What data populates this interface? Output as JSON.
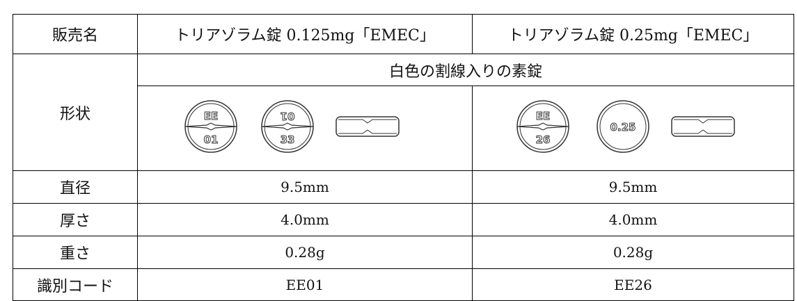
{
  "table": {
    "header": [
      "販売名",
      "トリアゾラム錠 0.125mg「EMEC」",
      "トリアゾラム錠 0.25mg「EMEC」"
    ],
    "shape_label": "形状",
    "shape_description": "白色の割線入りの素錠",
    "pills": [
      [
        {
          "top": "EE",
          "bottom": "01"
        },
        {
          "top": "01",
          "bottom": "33",
          "rotated_top": true
        }
      ],
      [
        {
          "top": "EE",
          "bottom": "26"
        },
        {
          "center": "0.25"
        }
      ]
    ],
    "rows": [
      [
        "直径",
        "9.5mm",
        "9.5mm"
      ],
      [
        "厚さ",
        "4.0mm",
        "4.0mm"
      ],
      [
        "重さ",
        "0.28g",
        "0.28g"
      ],
      [
        "識別コード",
        "EE01",
        "EE26"
      ]
    ]
  }
}
